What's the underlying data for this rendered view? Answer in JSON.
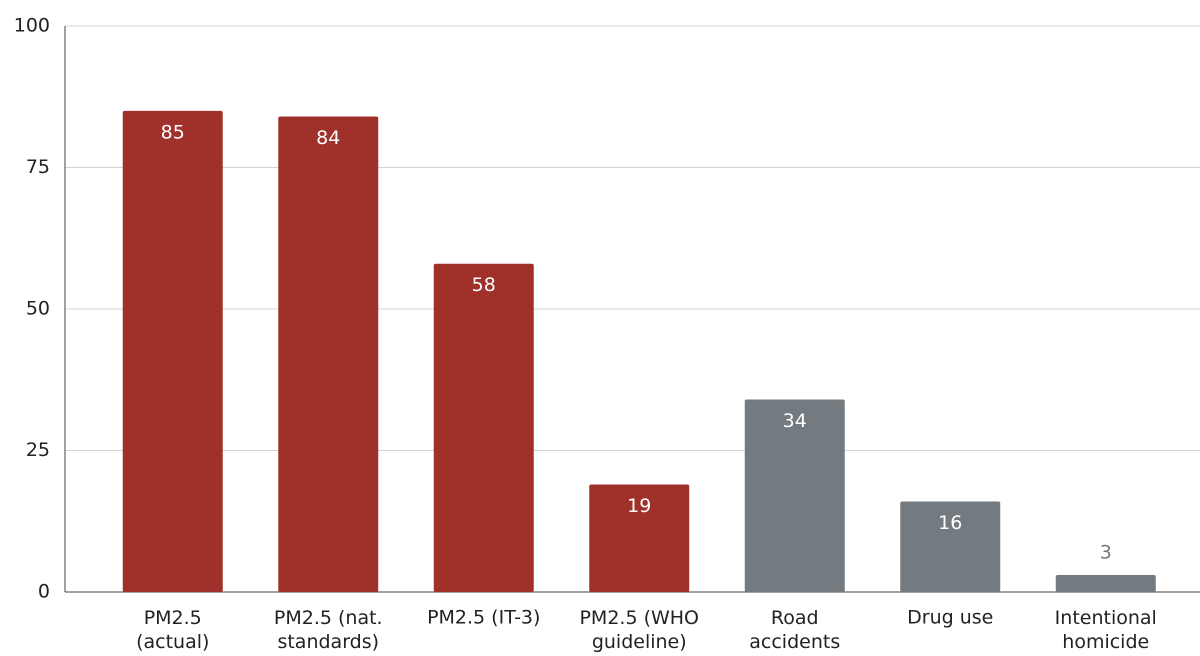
{
  "chart_data": {
    "type": "bar",
    "categories": [
      "PM2.5\n(actual)",
      "PM2.5 (nat.\nstandards)",
      "PM2.5 (IT-3)",
      "PM2.5 (WHO\nguideline)",
      "Road\naccidents",
      "Drug use",
      "Intentional\nhomicide"
    ],
    "values": [
      85,
      84,
      58,
      19,
      34,
      16,
      3
    ],
    "colors": [
      "#a0302a",
      "#a0302a",
      "#a0302a",
      "#a0302a",
      "#737b80",
      "#737b80",
      "#737b80"
    ],
    "ylim": [
      0,
      100
    ],
    "yticks": [
      0,
      25,
      50,
      75,
      100
    ],
    "grid": true
  }
}
